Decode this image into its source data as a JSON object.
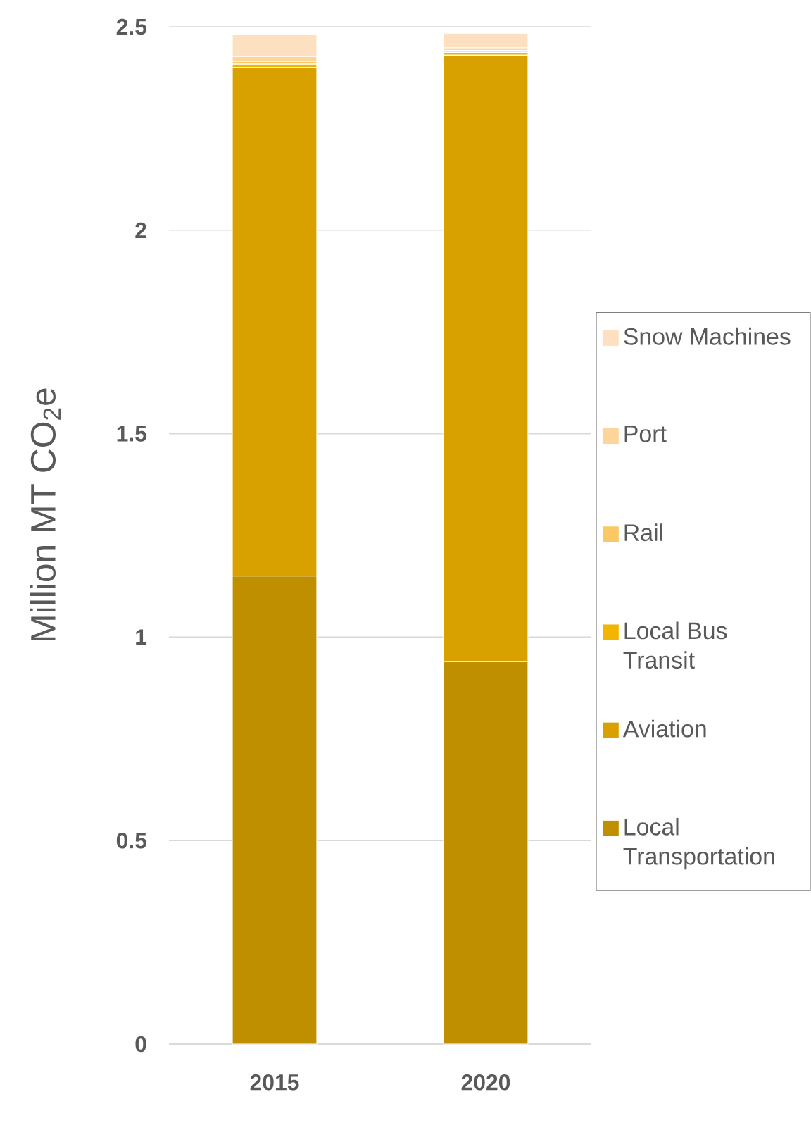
{
  "chart_data": {
    "type": "bar",
    "stacked": true,
    "ylabel": "Million MT CO$_{2}$e",
    "categories": [
      "2015",
      "2020"
    ],
    "series": [
      {
        "name": "Local Transportation",
        "color": "#bf8f00",
        "values": [
          1.15,
          0.94
        ]
      },
      {
        "name": "Aviation",
        "color": "#d9a100",
        "values": [
          1.25,
          1.49
        ]
      },
      {
        "name": "Local Bus Transit",
        "color": "#f2b600",
        "values": [
          0.008,
          0.007
        ]
      },
      {
        "name": "Rail",
        "color": "#fac865",
        "values": [
          0.007,
          0.005
        ]
      },
      {
        "name": "Port",
        "color": "#fdd49a",
        "values": [
          0.012,
          0.006
        ]
      },
      {
        "name": "Snow Machines",
        "color": "#fde0c0",
        "values": [
          0.054,
          0.036
        ]
      }
    ],
    "ylim": [
      0,
      2.5
    ],
    "yticks": [
      0,
      0.5,
      1,
      1.5,
      2,
      2.5
    ],
    "grid": "y",
    "legend": "right"
  }
}
